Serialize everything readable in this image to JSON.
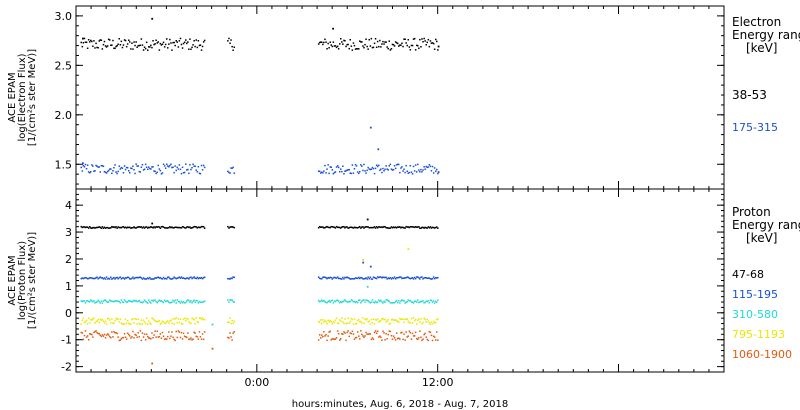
{
  "xlabel": "hours:minutes, Aug.  6, 2018 - Aug.  7, 2018",
  "xticks": [
    "0:00",
    "12:00"
  ],
  "colors": {
    "black": "#000000",
    "blue": "#1a50d8",
    "cyan": "#22d8d8",
    "yellow": "#e8e800",
    "orange": "#e05a10"
  },
  "chart_data": [
    {
      "type": "scatter",
      "panel": "electron",
      "ylabel_lines": [
        "ACE EPAM",
        "log(Electron Flux)",
        "[1/(cm²s ster MeV)]"
      ],
      "ylim": [
        1.25,
        3.1
      ],
      "yticks": [
        "1.5",
        "2.0",
        "2.5",
        "3.0"
      ],
      "legend_title": [
        "Electron",
        "Energy ranges",
        "[keV]"
      ],
      "data_gaps_hours": [
        [
          -3.5,
          -2.0
        ],
        [
          -1.5,
          4.0
        ]
      ],
      "x_range_hours": [
        -12,
        31
      ],
      "series": [
        {
          "name": "38-53",
          "color": "black",
          "mean": 2.72,
          "spread": 0.06,
          "points": [
            [
              -11.6,
              2.78
            ],
            [
              -7.0,
              2.98
            ],
            [
              5.0,
              2.88
            ],
            [
              12.0,
              2.7
            ]
          ]
        },
        {
          "name": "175-315",
          "color": "blue",
          "mean": 1.46,
          "spread": 0.05,
          "points": [
            [
              -11.6,
              1.52
            ],
            [
              7.5,
              1.88
            ],
            [
              8.0,
              1.66
            ],
            [
              12.0,
              1.43
            ]
          ]
        }
      ]
    },
    {
      "type": "scatter",
      "panel": "proton",
      "ylabel_lines": [
        "ACE EPAM",
        "log(Proton Flux)",
        "[1/(cm²s ster MeV)]"
      ],
      "ylim": [
        -2.2,
        4.6
      ],
      "yticks": [
        "-2",
        "-1",
        "0",
        "1",
        "2",
        "3",
        "4"
      ],
      "legend_title": [
        "Proton",
        "Energy ranges",
        "[keV]"
      ],
      "data_gaps_hours": [
        [
          -3.5,
          -2.0
        ],
        [
          -1.5,
          4.0
        ]
      ],
      "x_range_hours": [
        -12,
        31
      ],
      "series": [
        {
          "name": "47-68",
          "color": "black",
          "mean": 3.2,
          "spread": 0.03,
          "points": [
            [
              -7.0,
              3.35
            ],
            [
              7.3,
              3.5
            ]
          ]
        },
        {
          "name": "115-195",
          "color": "blue",
          "mean": 1.32,
          "spread": 0.04,
          "points": [
            [
              7.0,
              1.9
            ],
            [
              7.5,
              1.75
            ]
          ]
        },
        {
          "name": "310-580",
          "color": "cyan",
          "mean": 0.45,
          "spread": 0.06,
          "points": [
            [
              -3.0,
              -0.4
            ],
            [
              7.3,
              1.0
            ]
          ]
        },
        {
          "name": "795-1193",
          "color": "yellow",
          "mean": -0.28,
          "spread": 0.12,
          "points": [
            [
              7.0,
              2.0
            ],
            [
              10.0,
              2.4
            ]
          ]
        },
        {
          "name": "1060-1900",
          "color": "orange",
          "mean": -0.82,
          "spread": 0.18,
          "points": [
            [
              -7.0,
              -1.85
            ],
            [
              -3.0,
              -1.3
            ]
          ]
        }
      ]
    }
  ]
}
